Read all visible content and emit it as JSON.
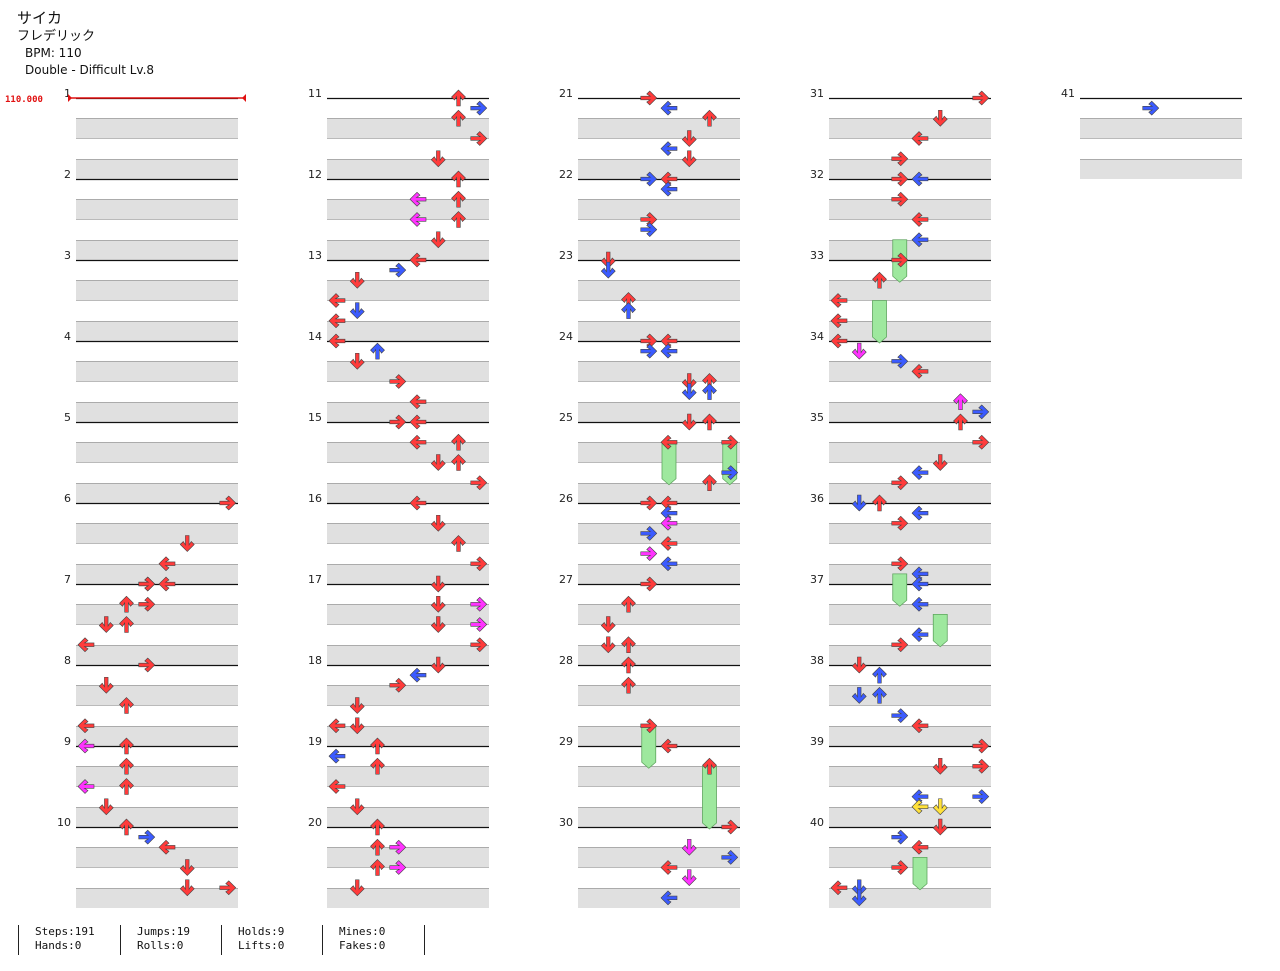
{
  "song": {
    "title": "サイカ",
    "artist": "フレデリック",
    "bpm_label": "BPM: 110",
    "difficulty_label": "Double - Difficult Lv.8"
  },
  "chart_data": {
    "type": "step-chart",
    "mode": "Double",
    "difficulty": "Difficult",
    "level": 8,
    "columns_count": 8,
    "bpm_marker": "110.000",
    "measure_count": 41,
    "measure_numbers": [
      1,
      2,
      3,
      4,
      5,
      6,
      7,
      8,
      9,
      10,
      11,
      12,
      13,
      14,
      15,
      16,
      17,
      18,
      19,
      20,
      21,
      22,
      23,
      24,
      25,
      26,
      27,
      28,
      29,
      30,
      31,
      32,
      33,
      34,
      35,
      36,
      37,
      38,
      39,
      40,
      41
    ],
    "colors": {
      "quarter": "#ff3b3b",
      "eighth": "#3b5bff",
      "sixteenth": "#ff33ff",
      "twentyfourth": "#ffe13b",
      "hold": "#9ee89e",
      "bpm_line": "#e11111"
    },
    "notes_legend": [
      "L",
      "D",
      "U",
      "R",
      "L",
      "D",
      "U",
      "R"
    ],
    "notes": [
      [
        6,
        0,
        7,
        "quarter"
      ],
      [
        6,
        1,
        5,
        "quarter"
      ],
      [
        6,
        1.5,
        4,
        "quarter"
      ],
      [
        6,
        2,
        3,
        "quarter"
      ],
      [
        7,
        0,
        3,
        "quarter"
      ],
      [
        7,
        0,
        4,
        "quarter"
      ],
      [
        7,
        0.5,
        2,
        "quarter"
      ],
      [
        7,
        0.5,
        3,
        "quarter"
      ],
      [
        7,
        1,
        1,
        "quarter"
      ],
      [
        7,
        1,
        2,
        "quarter"
      ],
      [
        7,
        1.5,
        0,
        "quarter"
      ],
      [
        8,
        0,
        3,
        "quarter"
      ],
      [
        8,
        0.5,
        1,
        "quarter"
      ],
      [
        8,
        1,
        2,
        "quarter"
      ],
      [
        8,
        1.5,
        0,
        "quarter"
      ],
      [
        9,
        0,
        0,
        "sixteenth"
      ],
      [
        9,
        0,
        2,
        "quarter"
      ],
      [
        9,
        0.5,
        2,
        "quarter"
      ],
      [
        9,
        1,
        0,
        "sixteenth"
      ],
      [
        9,
        1,
        2,
        "quarter"
      ],
      [
        9,
        1.5,
        1,
        "quarter"
      ],
      [
        10,
        0,
        2,
        "quarter"
      ],
      [
        10,
        0.25,
        3,
        "eighth"
      ],
      [
        10,
        0.5,
        4,
        "quarter"
      ],
      [
        10,
        1,
        5,
        "quarter"
      ],
      [
        10,
        1.5,
        5,
        "quarter"
      ],
      [
        10,
        1.5,
        7,
        "quarter"
      ],
      [
        11,
        0,
        6,
        "quarter"
      ],
      [
        11,
        0.25,
        7,
        "eighth"
      ],
      [
        11,
        0.5,
        6,
        "quarter"
      ],
      [
        11,
        1,
        7,
        "quarter"
      ],
      [
        11,
        1.5,
        5,
        "quarter"
      ],
      [
        12,
        0,
        6,
        "quarter"
      ],
      [
        12,
        0.5,
        4,
        "sixteenth"
      ],
      [
        12,
        0.5,
        6,
        "quarter"
      ],
      [
        12,
        1,
        4,
        "sixteenth"
      ],
      [
        12,
        1,
        6,
        "quarter"
      ],
      [
        12,
        1.5,
        5,
        "quarter"
      ],
      [
        13,
        0,
        4,
        "quarter"
      ],
      [
        13,
        0.25,
        3,
        "eighth"
      ],
      [
        13,
        0.5,
        1,
        "quarter"
      ],
      [
        13,
        1,
        0,
        "quarter"
      ],
      [
        13,
        1.25,
        1,
        "eighth"
      ],
      [
        13,
        1.5,
        0,
        "quarter"
      ],
      [
        14,
        0,
        0,
        "quarter"
      ],
      [
        14,
        0.25,
        2,
        "eighth"
      ],
      [
        14,
        0.5,
        1,
        "quarter"
      ],
      [
        14,
        1,
        3,
        "quarter"
      ],
      [
        14,
        1.5,
        4,
        "quarter"
      ],
      [
        15,
        0,
        3,
        "quarter"
      ],
      [
        15,
        0,
        4,
        "quarter"
      ],
      [
        15,
        0.5,
        4,
        "quarter"
      ],
      [
        15,
        0.5,
        6,
        "quarter"
      ],
      [
        15,
        1,
        5,
        "quarter"
      ],
      [
        15,
        1,
        6,
        "quarter"
      ],
      [
        15,
        1.5,
        7,
        "quarter"
      ],
      [
        16,
        0,
        4,
        "quarter"
      ],
      [
        16,
        0.5,
        5,
        "quarter"
      ],
      [
        16,
        1,
        6,
        "quarter"
      ],
      [
        16,
        1.5,
        7,
        "quarter"
      ],
      [
        17,
        0,
        5,
        "quarter"
      ],
      [
        17,
        0.5,
        5,
        "quarter"
      ],
      [
        17,
        0.5,
        7,
        "sixteenth"
      ],
      [
        17,
        1,
        5,
        "quarter"
      ],
      [
        17,
        1,
        7,
        "sixteenth"
      ],
      [
        17,
        1.5,
        7,
        "quarter"
      ],
      [
        18,
        0,
        5,
        "quarter"
      ],
      [
        18,
        0.25,
        4,
        "eighth"
      ],
      [
        18,
        0.5,
        3,
        "quarter"
      ],
      [
        18,
        1,
        1,
        "quarter"
      ],
      [
        18,
        1.5,
        0,
        "quarter"
      ],
      [
        18,
        1.5,
        1,
        "quarter"
      ],
      [
        19,
        0.25,
        0,
        "eighth"
      ],
      [
        19,
        0,
        2,
        "quarter"
      ],
      [
        19,
        0.5,
        2,
        "quarter"
      ],
      [
        19,
        1,
        0,
        "quarter"
      ],
      [
        19,
        1.5,
        1,
        "quarter"
      ],
      [
        20,
        0,
        2,
        "quarter"
      ],
      [
        20,
        0.5,
        2,
        "quarter"
      ],
      [
        20,
        0.5,
        3,
        "sixteenth"
      ],
      [
        20,
        1,
        2,
        "quarter"
      ],
      [
        20,
        1,
        3,
        "sixteenth"
      ],
      [
        20,
        1.5,
        1,
        "quarter"
      ],
      [
        21,
        0,
        3,
        "quarter"
      ],
      [
        21,
        0.25,
        4,
        "eighth"
      ],
      [
        21,
        0.5,
        6,
        "quarter"
      ],
      [
        21,
        1,
        5,
        "quarter"
      ],
      [
        21,
        1.25,
        4,
        "eighth"
      ],
      [
        21,
        1.5,
        5,
        "quarter"
      ],
      [
        22,
        0,
        3,
        "eighth"
      ],
      [
        22,
        0,
        4,
        "quarter"
      ],
      [
        22,
        0.25,
        4,
        "eighth"
      ],
      [
        22,
        1,
        3,
        "quarter"
      ],
      [
        22,
        1.25,
        3,
        "eighth"
      ],
      [
        23,
        0,
        1,
        "quarter"
      ],
      [
        23,
        0.25,
        1,
        "eighth"
      ],
      [
        23,
        1,
        2,
        "quarter"
      ],
      [
        23,
        1.25,
        2,
        "eighth"
      ],
      [
        24,
        0,
        3,
        "quarter"
      ],
      [
        24,
        0,
        4,
        "quarter"
      ],
      [
        24,
        0.25,
        3,
        "eighth"
      ],
      [
        24,
        0.25,
        4,
        "eighth"
      ],
      [
        24,
        1,
        5,
        "quarter"
      ],
      [
        24,
        1,
        6,
        "quarter"
      ],
      [
        24,
        1.25,
        5,
        "eighth"
      ],
      [
        24,
        1.25,
        6,
        "eighth"
      ],
      [
        25,
        0,
        5,
        "quarter"
      ],
      [
        25,
        0,
        6,
        "quarter"
      ],
      [
        25,
        0.5,
        4,
        "quarter"
      ],
      [
        25,
        0.5,
        7,
        "quarter"
      ],
      [
        25,
        1.25,
        7,
        "eighth"
      ],
      [
        25,
        1.5,
        6,
        "quarter"
      ],
      [
        26,
        0,
        3,
        "quarter"
      ],
      [
        26,
        0,
        4,
        "quarter"
      ],
      [
        26,
        0.25,
        4,
        "eighth"
      ],
      [
        26,
        0.5,
        4,
        "sixteenth"
      ],
      [
        26,
        0.75,
        3,
        "eighth"
      ],
      [
        26,
        1,
        4,
        "quarter"
      ],
      [
        26,
        1.25,
        3,
        "sixteenth"
      ],
      [
        26,
        1.5,
        4,
        "eighth"
      ],
      [
        27,
        0,
        3,
        "quarter"
      ],
      [
        27,
        0.5,
        2,
        "quarter"
      ],
      [
        27,
        1,
        1,
        "quarter"
      ],
      [
        27,
        1.5,
        1,
        "quarter"
      ],
      [
        27,
        1.5,
        2,
        "quarter"
      ],
      [
        28,
        0,
        2,
        "quarter"
      ],
      [
        28,
        0.5,
        2,
        "quarter"
      ],
      [
        28,
        1.5,
        3,
        "quarter"
      ],
      [
        29,
        0,
        4,
        "quarter"
      ],
      [
        29,
        0.5,
        6,
        "quarter"
      ],
      [
        30,
        0,
        7,
        "quarter"
      ],
      [
        30,
        0.5,
        5,
        "sixteenth"
      ],
      [
        30,
        0.75,
        7,
        "eighth"
      ],
      [
        30,
        1,
        4,
        "quarter"
      ],
      [
        30,
        1.25,
        5,
        "sixteenth"
      ],
      [
        30,
        1.75,
        4,
        "eighth"
      ],
      [
        31,
        0,
        7,
        "quarter"
      ],
      [
        31,
        0.5,
        5,
        "quarter"
      ],
      [
        31,
        1,
        4,
        "quarter"
      ],
      [
        31,
        1.5,
        3,
        "quarter"
      ],
      [
        32,
        0,
        3,
        "quarter"
      ],
      [
        32,
        0,
        4,
        "eighth"
      ],
      [
        32,
        0.5,
        3,
        "quarter"
      ],
      [
        32,
        1,
        4,
        "quarter"
      ],
      [
        32,
        1.5,
        4,
        "eighth"
      ],
      [
        33,
        0,
        3,
        "quarter"
      ],
      [
        33,
        0.5,
        2,
        "quarter"
      ],
      [
        33,
        1,
        0,
        "quarter"
      ],
      [
        33,
        1.5,
        0,
        "quarter"
      ],
      [
        34,
        0,
        0,
        "quarter"
      ],
      [
        34,
        0.25,
        1,
        "sixteenth"
      ],
      [
        34,
        0.5,
        3,
        "eighth"
      ],
      [
        34,
        0.75,
        4,
        "quarter"
      ],
      [
        34,
        1.5,
        6,
        "sixteenth"
      ],
      [
        34,
        1.75,
        7,
        "eighth"
      ],
      [
        35,
        0,
        6,
        "quarter"
      ],
      [
        35,
        0.5,
        7,
        "quarter"
      ],
      [
        35,
        1,
        5,
        "quarter"
      ],
      [
        35,
        1.25,
        4,
        "eighth"
      ],
      [
        35,
        1.5,
        3,
        "quarter"
      ],
      [
        36,
        0,
        1,
        "eighth"
      ],
      [
        36,
        0,
        2,
        "quarter"
      ],
      [
        36,
        0.25,
        4,
        "eighth"
      ],
      [
        36,
        0.5,
        3,
        "quarter"
      ],
      [
        36,
        1.5,
        3,
        "quarter"
      ],
      [
        36,
        1.75,
        4,
        "eighth"
      ],
      [
        37,
        0,
        4,
        "eighth"
      ],
      [
        37,
        0.5,
        4,
        "eighth"
      ],
      [
        37,
        1.25,
        4,
        "eighth"
      ],
      [
        37,
        1.5,
        3,
        "quarter"
      ],
      [
        38,
        0,
        1,
        "quarter"
      ],
      [
        38,
        0.25,
        2,
        "eighth"
      ],
      [
        38,
        0.75,
        1,
        "eighth"
      ],
      [
        38,
        0.75,
        2,
        "eighth"
      ],
      [
        38,
        1.25,
        3,
        "eighth"
      ],
      [
        38,
        1.5,
        4,
        "quarter"
      ],
      [
        39,
        0,
        7,
        "quarter"
      ],
      [
        39,
        0.5,
        5,
        "quarter"
      ],
      [
        39,
        0.5,
        7,
        "quarter"
      ],
      [
        39,
        1.25,
        4,
        "eighth"
      ],
      [
        39,
        1.25,
        7,
        "eighth"
      ],
      [
        39,
        1.5,
        4,
        "twentyfourth"
      ],
      [
        39,
        1.5,
        5,
        "twentyfourth"
      ],
      [
        40,
        0,
        5,
        "quarter"
      ],
      [
        40,
        0.25,
        3,
        "eighth"
      ],
      [
        40,
        0.5,
        4,
        "quarter"
      ],
      [
        40,
        1,
        3,
        "quarter"
      ],
      [
        40,
        1.5,
        0,
        "quarter"
      ],
      [
        40,
        1.5,
        1,
        "eighth"
      ],
      [
        40,
        1.75,
        1,
        "eighth"
      ],
      [
        41,
        0.25,
        3,
        "eighth"
      ]
    ],
    "holds": [
      [
        25,
        0.5,
        4,
        1.0
      ],
      [
        25,
        0.5,
        7,
        1.0
      ],
      [
        28,
        1.5,
        3,
        1.0
      ],
      [
        29,
        0.5,
        6,
        1.5
      ],
      [
        32,
        1.5,
        3,
        1.0
      ],
      [
        33,
        1,
        2,
        1.0
      ],
      [
        36,
        1.75,
        3,
        0.75
      ],
      [
        37,
        0.75,
        5,
        0.75
      ],
      [
        40,
        0.75,
        4,
        0.75
      ]
    ]
  },
  "stats": {
    "steps": "Steps:191",
    "hands": "Hands:0",
    "jumps": "Jumps:19",
    "rolls": "Rolls:0",
    "holds": "Holds:9",
    "lifts": "Lifts:0",
    "mines": "Mines:0",
    "fakes": "Fakes:0"
  }
}
